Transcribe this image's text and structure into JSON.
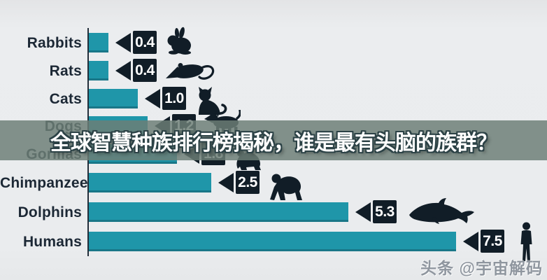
{
  "chart_data": {
    "type": "bar",
    "orientation": "horizontal",
    "categories": [
      "Rabbits",
      "Rats",
      "Cats",
      "Dogs",
      "Gorillas",
      "Chimpanzees",
      "Dolphins",
      "Humans"
    ],
    "values": [
      0.4,
      0.4,
      1.0,
      1.2,
      1.8,
      2.5,
      5.3,
      7.5
    ],
    "value_labels": [
      "0.4",
      "0.4",
      "1.0",
      "1.2",
      "1.8",
      "2.5",
      "5.3",
      "7.5"
    ],
    "icons": [
      "rabbit",
      "rat",
      "cat",
      "dog",
      "gorilla",
      "chimpanzee",
      "dolphin",
      "human"
    ],
    "xlim": [
      0,
      8
    ],
    "grid": false,
    "legend": false,
    "bar_color": "#1f96a9",
    "value_box_color": "#111d27",
    "label_color": "#1c2835",
    "axis_color": "#232e3a"
  },
  "overlay_banner": {
    "text": "全球智慧种族排行榜揭秘，谁是最有头脑的族群？",
    "band_color": "rgba(109,126,118,0.84)",
    "text_color": "#ffffff"
  },
  "watermark": {
    "text": "头条 @宇宙解码",
    "color": "#8f969f"
  }
}
